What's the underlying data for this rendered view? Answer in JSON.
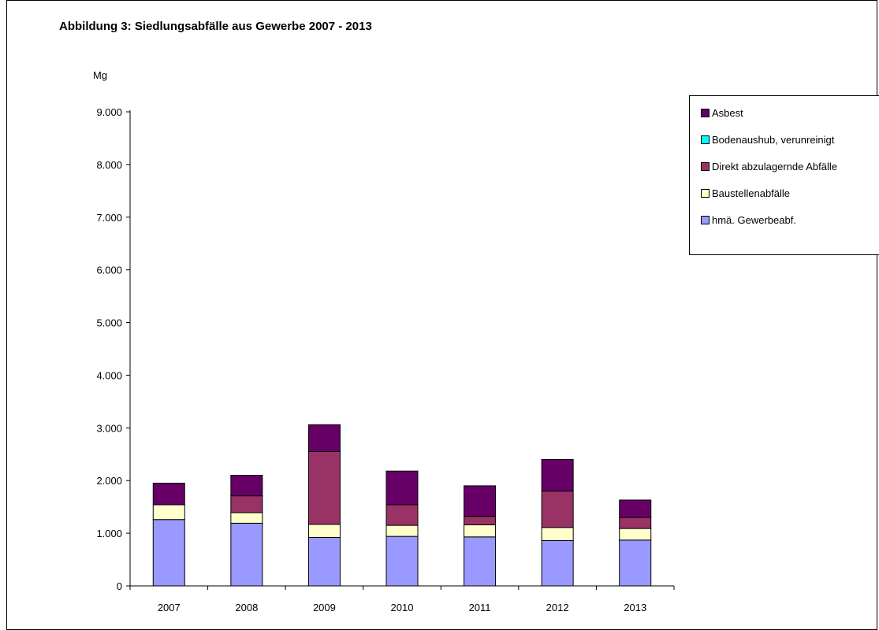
{
  "chart_data": {
    "type": "bar",
    "stacked": true,
    "title": "Abbildung 3: Siedlungsabfälle aus Gewerbe 2007 - 2013",
    "ylabel": "Mg",
    "xlabel": "",
    "ylim": [
      0,
      9000
    ],
    "yticks": [
      0,
      1000,
      2000,
      3000,
      4000,
      5000,
      6000,
      7000,
      8000,
      9000
    ],
    "ytick_labels": [
      "0",
      "1.000",
      "2.000",
      "3.000",
      "4.000",
      "5.000",
      "6.000",
      "7.000",
      "8.000",
      "9.000"
    ],
    "categories": [
      "2007",
      "2008",
      "2009",
      "2010",
      "2011",
      "2012",
      "2013"
    ],
    "grid": false,
    "legend_position": "right",
    "series": [
      {
        "name": "hmä. Gewerbeabf.",
        "color": "#9999ff",
        "values": [
          1260,
          1190,
          920,
          940,
          930,
          860,
          870
        ]
      },
      {
        "name": "Baustellenabfälle",
        "color": "#ffffcc",
        "values": [
          280,
          200,
          250,
          210,
          230,
          250,
          220
        ]
      },
      {
        "name": "Direkt abzulagernde Abfälle",
        "color": "#993366",
        "values": [
          0,
          320,
          1380,
          390,
          160,
          690,
          210
        ]
      },
      {
        "name": "Bodenaushub, verunreinigt",
        "color": "#00ffff",
        "values": [
          0,
          0,
          0,
          0,
          0,
          0,
          0
        ]
      },
      {
        "name": "Asbest",
        "color": "#660066",
        "values": [
          410,
          390,
          510,
          640,
          580,
          600,
          330
        ]
      }
    ],
    "legend_order": [
      "Asbest",
      "Bodenaushub, verunreinigt",
      "Direkt abzulagernde Abfälle",
      "Baustellenabfälle",
      "hmä. Gewerbeabf."
    ]
  }
}
